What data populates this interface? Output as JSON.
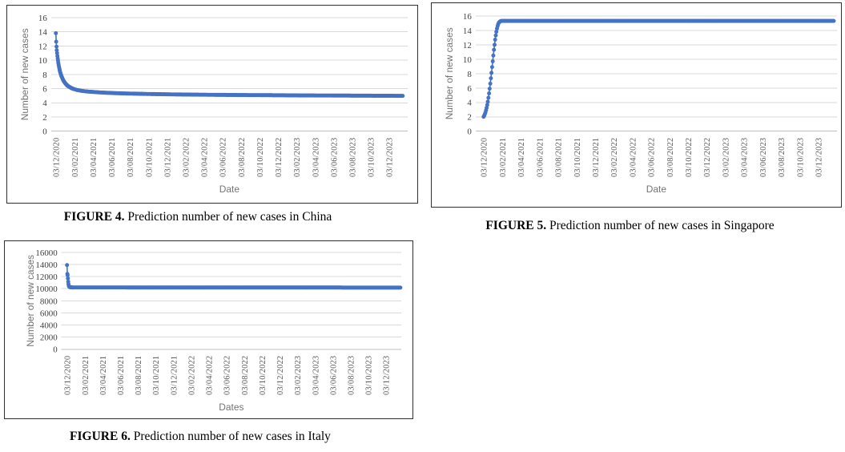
{
  "figures": [
    {
      "caption_bold": "FIGURE 4.",
      "caption_text": " Prediction number of new cases in China"
    },
    {
      "caption_bold": "FIGURE 5.",
      "caption_text": " Prediction number of new cases in Singapore"
    },
    {
      "caption_bold": "FIGURE 6.",
      "caption_text": " Prediction number of new cases in Italy"
    }
  ],
  "chart_data": [
    {
      "type": "scatter",
      "title": "",
      "country": "China",
      "xlabel": "Date",
      "ylabel": "Number of new cases",
      "ylim": [
        0,
        16
      ],
      "yticks": [
        0,
        2,
        4,
        6,
        8,
        10,
        12,
        14,
        16
      ],
      "x_tick_labels": [
        "03/12/2020",
        "03/02/2021",
        "03/04/2021",
        "03/06/2021",
        "03/08/2021",
        "03/10/2021",
        "03/12/2021",
        "03/02/2022",
        "03/04/2022",
        "03/06/2022",
        "03/08/2022",
        "03/10/2022",
        "03/12/2022",
        "03/02/2023",
        "03/04/2023",
        "03/06/2023",
        "03/08/2023",
        "03/10/2023",
        "03/12/2023"
      ],
      "x_tick_interval_days": 61,
      "end_day": 1143,
      "grid": "horizontal",
      "legend": "none",
      "marker_color": "#4472C4",
      "gridline_color": "#d9d9d9",
      "dense_until": 60,
      "dense_step": 1,
      "step": 3,
      "points_keyframes": [
        [
          0,
          13.8
        ],
        [
          1,
          12.6
        ],
        [
          2,
          11.9
        ],
        [
          3,
          11.4
        ],
        [
          4,
          11.0
        ],
        [
          5,
          10.6
        ],
        [
          6,
          10.25
        ],
        [
          7,
          9.95
        ],
        [
          8,
          9.65
        ],
        [
          9,
          9.4
        ],
        [
          10,
          9.15
        ],
        [
          12,
          8.7
        ],
        [
          14,
          8.35
        ],
        [
          16,
          8.05
        ],
        [
          18,
          7.8
        ],
        [
          20,
          7.6
        ],
        [
          23,
          7.3
        ],
        [
          26,
          7.05
        ],
        [
          30,
          6.8
        ],
        [
          35,
          6.55
        ],
        [
          40,
          6.35
        ],
        [
          46,
          6.2
        ],
        [
          52,
          6.05
        ],
        [
          60,
          5.92
        ],
        [
          70,
          5.8
        ],
        [
          85,
          5.68
        ],
        [
          100,
          5.6
        ],
        [
          130,
          5.5
        ],
        [
          170,
          5.4
        ],
        [
          220,
          5.32
        ],
        [
          300,
          5.24
        ],
        [
          400,
          5.17
        ],
        [
          520,
          5.12
        ],
        [
          650,
          5.08
        ],
        [
          800,
          5.04
        ],
        [
          950,
          5.01
        ],
        [
          1143,
          4.98
        ]
      ]
    },
    {
      "type": "scatter",
      "title": "",
      "country": "Singapore",
      "xlabel": "Date",
      "ylabel": "Number of new cases",
      "ylim": [
        0,
        16
      ],
      "yticks": [
        0,
        2,
        4,
        6,
        8,
        10,
        12,
        14,
        16
      ],
      "x_tick_labels": [
        "03/12/2020",
        "03/02/2021",
        "03/04/2021",
        "03/06/2021",
        "03/08/2021",
        "03/10/2021",
        "03/12/2021",
        "03/02/2022",
        "03/04/2022",
        "03/06/2022",
        "03/08/2022",
        "03/10/2022",
        "03/12/2022",
        "03/02/2023",
        "03/04/2023",
        "03/06/2023",
        "03/08/2023",
        "03/10/2023",
        "03/12/2023"
      ],
      "x_tick_interval_days": 61,
      "end_day": 1150,
      "grid": "horizontal",
      "legend": "none",
      "marker_color": "#4472C4",
      "gridline_color": "#d9d9d9",
      "dense_until": 60,
      "dense_step": 2,
      "step": 3,
      "points_keyframes": [
        [
          0,
          2.0
        ],
        [
          2,
          2.15
        ],
        [
          4,
          2.35
        ],
        [
          6,
          2.6
        ],
        [
          8,
          2.9
        ],
        [
          10,
          3.25
        ],
        [
          12,
          3.65
        ],
        [
          14,
          4.1
        ],
        [
          16,
          4.65
        ],
        [
          18,
          5.25
        ],
        [
          20,
          5.9
        ],
        [
          22,
          6.6
        ],
        [
          24,
          7.35
        ],
        [
          26,
          8.1
        ],
        [
          28,
          8.9
        ],
        [
          30,
          9.7
        ],
        [
          32,
          10.5
        ],
        [
          34,
          11.3
        ],
        [
          36,
          12.0
        ],
        [
          38,
          12.7
        ],
        [
          40,
          13.3
        ],
        [
          42,
          13.8
        ],
        [
          44,
          14.25
        ],
        [
          46,
          14.6
        ],
        [
          48,
          14.85
        ],
        [
          50,
          15.05
        ],
        [
          53,
          15.2
        ],
        [
          56,
          15.28
        ],
        [
          60,
          15.3
        ],
        [
          1150,
          15.3
        ]
      ]
    },
    {
      "type": "scatter",
      "title": "",
      "country": "Italy",
      "xlabel": "Dates",
      "ylabel": "Number of new cases",
      "ylim": [
        0,
        16000
      ],
      "yticks": [
        0,
        2000,
        4000,
        6000,
        8000,
        10000,
        12000,
        14000,
        16000
      ],
      "x_tick_labels": [
        "03/12/2020",
        "03/02/2021",
        "03/04/2021",
        "03/06/2021",
        "03/08/2021",
        "03/10/2021",
        "03/12/2021",
        "03/02/2022",
        "03/04/2022",
        "03/06/2022",
        "03/08/2022",
        "03/10/2022",
        "03/12/2022",
        "03/02/2023",
        "03/04/2023",
        "03/06/2023",
        "03/08/2023",
        "03/10/2023",
        "03/12/2023"
      ],
      "x_tick_interval_days": 61,
      "end_day": 1148,
      "grid": "horizontal",
      "legend": "none",
      "marker_color": "#4472C4",
      "gridline_color": "#d9d9d9",
      "dense_until": 20,
      "dense_step": 1,
      "step": 3,
      "points_keyframes": [
        [
          0,
          13900
        ],
        [
          1,
          12450
        ],
        [
          2,
          12250
        ],
        [
          3,
          11700
        ],
        [
          4,
          11150
        ],
        [
          5,
          10750
        ],
        [
          6,
          10500
        ],
        [
          7,
          10380
        ],
        [
          8,
          10300
        ],
        [
          10,
          10250
        ],
        [
          14,
          10220
        ],
        [
          20,
          10200
        ],
        [
          1148,
          10180
        ]
      ]
    }
  ]
}
